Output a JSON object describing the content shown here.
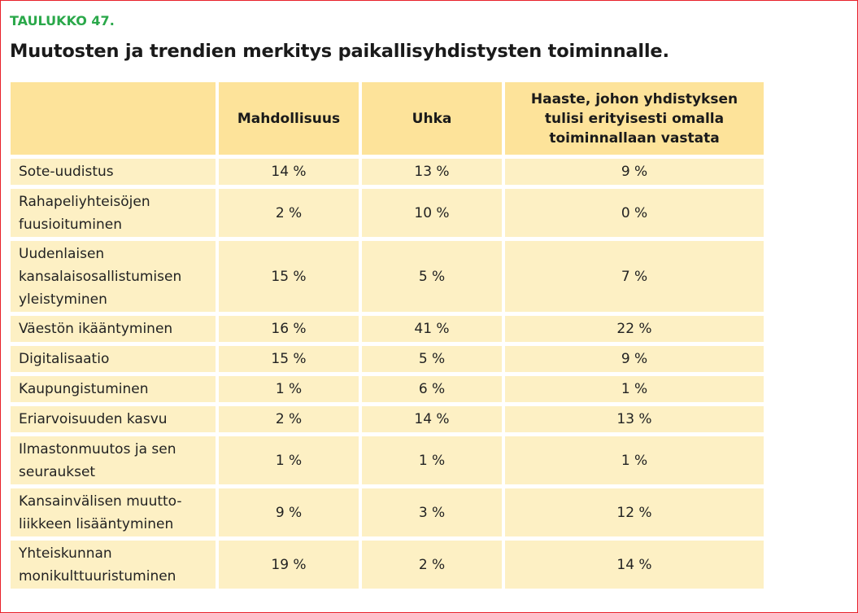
{
  "table_label": "TAULUKKO 47.",
  "title": "Muutosten ja trendien merkitys paikallisyhdistysten toiminnalle.",
  "columns": [
    "",
    "Mahdollisuus",
    "Uhka",
    "Haaste, johon yhdistyksen tulisi erityisesti omalla toiminnallaan vastata"
  ],
  "rows": [
    {
      "name": "Sote-uudistus",
      "mahdollisuus": "14 %",
      "uhka": "13 %",
      "haaste": "9 %"
    },
    {
      "name": "Rahapeliyhteisöjen fuusioituminen",
      "mahdollisuus": "2 %",
      "uhka": "10 %",
      "haaste": "0 %"
    },
    {
      "name": "Uudenlaisen kansalaisosallistumisen yleistyminen",
      "mahdollisuus": "15 %",
      "uhka": "5 %",
      "haaste": "7 %"
    },
    {
      "name": "Väestön ikääntyminen",
      "mahdollisuus": "16 %",
      "uhka": "41 %",
      "haaste": "22 %"
    },
    {
      "name": "Digitalisaatio",
      "mahdollisuus": "15 %",
      "uhka": "5 %",
      "haaste": "9 %"
    },
    {
      "name": "Kaupungistuminen",
      "mahdollisuus": "1 %",
      "uhka": "6 %",
      "haaste": "1 %"
    },
    {
      "name": "Eriarvoisuuden kasvu",
      "mahdollisuus": "2 %",
      "uhka": "14 %",
      "haaste": "13 %"
    },
    {
      "name": "Ilmastonmuutos ja sen seuraukset",
      "mahdollisuus": "1 %",
      "uhka": "1 %",
      "haaste": "1 %"
    },
    {
      "name": "Kansainvälisen muutto-liikkeen lisääntyminen",
      "mahdollisuus": "9 %",
      "uhka": "3 %",
      "haaste": "12 %"
    },
    {
      "name": "Yhteiskunnan monikulttuuristuminen",
      "mahdollisuus": "19 %",
      "uhka": "2 %",
      "haaste": "14 %"
    }
  ],
  "colors": {
    "label": "#2aa84a",
    "header_bg": "#fde39a",
    "cell_bg": "#fdf0c4",
    "frame": "#e8202a"
  }
}
